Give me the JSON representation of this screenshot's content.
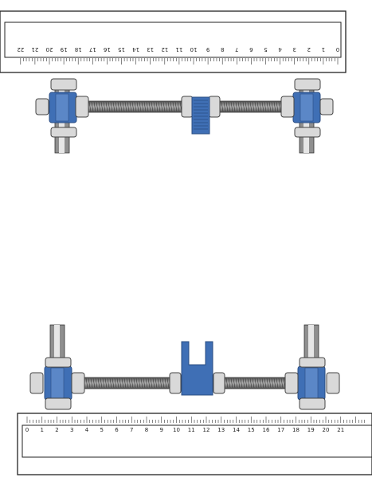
{
  "colors": {
    "background": "#ffffff",
    "ruler_fill": "#ffffff",
    "ruler_stroke": "#222222",
    "bracket_blue": "#3f6fb5",
    "bracket_dark": "#2a4c82",
    "nut_fill": "#d9d9d9",
    "nut_stroke": "#444444",
    "rod_dark": "#444444",
    "rod_light": "#a8a8a8",
    "post_fill": "#8f8f8f",
    "post_highlight": "#e6e6e6"
  },
  "top_ruler": {
    "orientation": "rotated-180",
    "labels": [
      "0",
      "1",
      "2",
      "3",
      "4",
      "5",
      "6",
      "7",
      "8",
      "9",
      "10",
      "11",
      "12",
      "13",
      "14",
      "15",
      "16",
      "17",
      "18",
      "19",
      "20",
      "21",
      "22"
    ]
  },
  "bottom_ruler": {
    "orientation": "upright",
    "labels": [
      "0",
      "1",
      "2",
      "3",
      "4",
      "5",
      "6",
      "7",
      "8",
      "9",
      "10",
      "11",
      "12",
      "13",
      "14",
      "15",
      "16",
      "17",
      "18",
      "19",
      "20",
      "21"
    ]
  },
  "assemblies": [
    {
      "id": "top-assembly",
      "view": "nut-and-clip-side",
      "post_direction": "down",
      "clip_shape": "clamp"
    },
    {
      "id": "bottom-assembly",
      "view": "fork-side",
      "post_direction": "up",
      "clip_shape": "fork"
    }
  ]
}
